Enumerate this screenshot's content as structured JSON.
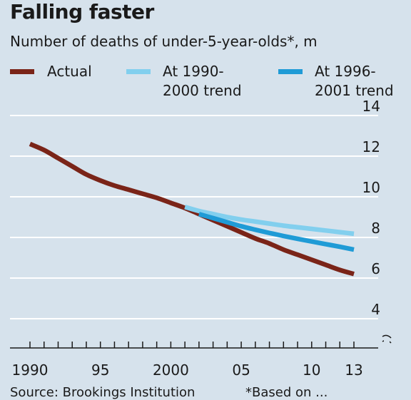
{
  "title": "Falling faster",
  "subtitle": "Number of deaths of under-5-year-olds*, m",
  "legend": [
    {
      "label_line1": "Actual",
      "label_line2": "",
      "color": "#7a2418"
    },
    {
      "label_line1": "At 1990-",
      "label_line2": "2000 trend",
      "color": "#82cfee"
    },
    {
      "label_line1": "At 1996-",
      "label_line2": "2001 trend",
      "color": "#1f9bd6"
    }
  ],
  "source_text": "Source: Brookings Institution",
  "footnote_text": "*Based on ...",
  "chart_data": {
    "type": "line",
    "xlabel": "",
    "ylabel": "",
    "x_ticks": [
      1990,
      1995,
      2000,
      2005,
      2010,
      2013
    ],
    "x_tick_labels": [
      "1990",
      "95",
      "2000",
      "05",
      "10",
      "13"
    ],
    "y_ticks": [
      4,
      6,
      8,
      10,
      12,
      14
    ],
    "y_tick_labels": [
      "4",
      "6",
      "8",
      "10",
      "12",
      "14"
    ],
    "xlim": [
      1989.5,
      2013.5
    ],
    "ylim": [
      3,
      14
    ],
    "axis_break": true,
    "y_axis_side": "right",
    "grid": true,
    "series": [
      {
        "name": "Actual",
        "color": "#7a2418",
        "x": [
          1990,
          1991,
          1992,
          1993,
          1994,
          1995,
          1996,
          1997,
          1998,
          1999,
          2000,
          2001,
          2002,
          2003,
          2004,
          2005,
          2006,
          2007,
          2008,
          2009,
          2010,
          2011,
          2012,
          2013
        ],
        "y": [
          12.6,
          12.3,
          11.9,
          11.5,
          11.1,
          10.8,
          10.55,
          10.35,
          10.15,
          9.95,
          9.7,
          9.45,
          9.15,
          8.85,
          8.55,
          8.25,
          7.95,
          7.7,
          7.4,
          7.15,
          6.9,
          6.65,
          6.4,
          6.2
        ]
      },
      {
        "name": "At 1990-2000 trend",
        "color": "#82cfee",
        "x": [
          2001,
          2002,
          2003,
          2004,
          2005,
          2006,
          2007,
          2008,
          2009,
          2010,
          2011,
          2012,
          2013
        ],
        "y": [
          9.5,
          9.3,
          9.15,
          9.0,
          8.88,
          8.78,
          8.68,
          8.58,
          8.5,
          8.42,
          8.34,
          8.26,
          8.18
        ]
      },
      {
        "name": "At 1996-2001 trend",
        "color": "#1f9bd6",
        "x": [
          2002,
          2003,
          2004,
          2005,
          2006,
          2007,
          2008,
          2009,
          2010,
          2011,
          2012,
          2013
        ],
        "y": [
          9.15,
          8.95,
          8.75,
          8.55,
          8.38,
          8.22,
          8.07,
          7.93,
          7.8,
          7.67,
          7.54,
          7.4
        ]
      }
    ]
  }
}
